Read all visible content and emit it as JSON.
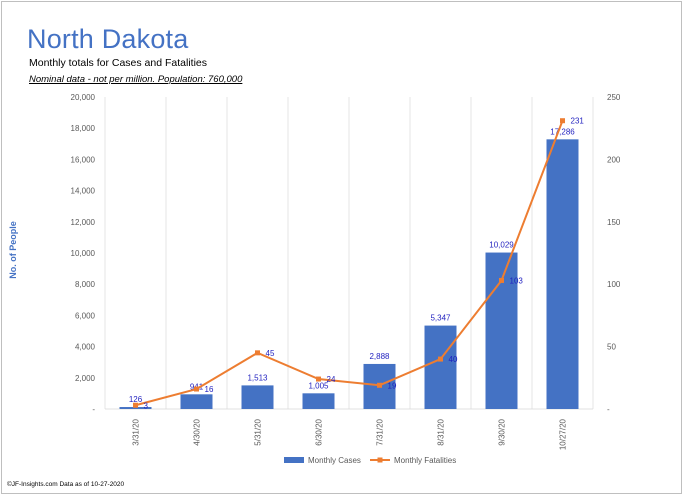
{
  "header": {
    "title": "North Dakota",
    "subtitle": "Monthly totals for Cases and Fatalities",
    "note": "Nominal data - not per million.  Population: 760,000"
  },
  "footer": "©JF-Insights.com  Data as of 10-27-2020",
  "chart_data": {
    "type": "bar",
    "categories": [
      "3/31/20",
      "4/30/20",
      "5/31/20",
      "6/30/20",
      "7/31/20",
      "8/31/20",
      "9/30/20",
      "10/27/20"
    ],
    "ylabel": "No. of People",
    "ylim": [
      0,
      20000
    ],
    "y_ticks": [
      "-",
      "2,000",
      "4,000",
      "6,000",
      "8,000",
      "10,000",
      "12,000",
      "14,000",
      "16,000",
      "18,000",
      "20,000"
    ],
    "y2lim": [
      0,
      250
    ],
    "y2_ticks": [
      "-",
      "50",
      "100",
      "150",
      "200",
      "250"
    ],
    "grid": "vertical",
    "legend": "bottom",
    "series": [
      {
        "name": "Monthly Cases",
        "type": "bar",
        "axis": "left",
        "color": "#4472c4",
        "values": [
          126,
          941,
          1513,
          1005,
          2888,
          5347,
          10029,
          17286
        ],
        "labels": [
          "126",
          "941",
          "1,513",
          "1,005",
          "2,888",
          "5,347",
          "10,029",
          "17,286"
        ]
      },
      {
        "name": "Monthly Fatalities",
        "type": "line",
        "axis": "right",
        "color": "#ed7d31",
        "values": [
          3,
          16,
          45,
          24,
          19,
          40,
          103,
          231
        ],
        "labels": [
          "3",
          "16",
          "45",
          "24",
          "19",
          "40",
          "103",
          "231"
        ]
      }
    ]
  }
}
